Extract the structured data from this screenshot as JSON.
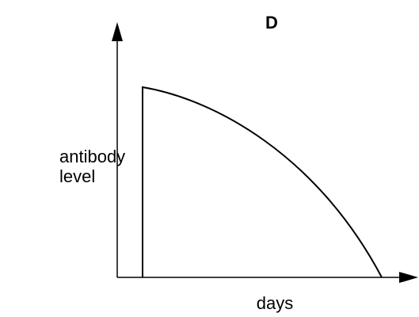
{
  "title": "D",
  "y_axis_label": [
    "antibody",
    "level"
  ],
  "x_axis_label": "days"
}
